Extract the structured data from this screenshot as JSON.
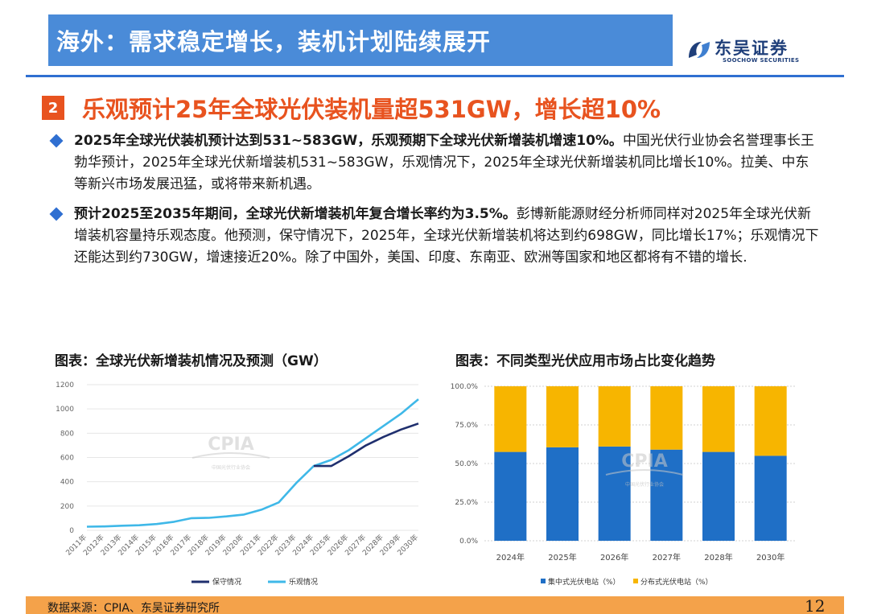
{
  "header": {
    "title": "海外：需求稳定增长，装机计划陆续展开"
  },
  "logo": {
    "name": "东吴证券",
    "subtitle": "SOOCHOW SECURITIES"
  },
  "section": {
    "number": "2",
    "title": "乐观预计25年全球光伏装机量超531GW，增长超10%"
  },
  "bullets": [
    {
      "bold": "2025年全球光伏装机预计达到531~583GW，乐观预期下全球光伏新增装机增速10%。",
      "text": "中国光伏行业协会名誉理事长王勃华预计，2025年全球光伏新增装机531~583GW，乐观情况下，2025年全球光伏新增装机同比增长10%。拉美、中东等新兴市场发展迅猛，或将带来新机遇。"
    },
    {
      "bold": "预计2025至2035年期间，全球光伏新增装机年复合增长率约为3.5%。",
      "text": "彭博新能源财经分析师同样对2025年全球光伏新增装机容量持乐观态度。他预测，保守情况下，2025年，全球光伏新增装机将达到约698GW，同比增长17%；乐观情况下还能达到约730GW，增速接近20%。除了中国外，美国、印度、东南亚、欧洲等国家和地区都将有不错的增长."
    }
  ],
  "charts": {
    "left_title": "图表：全球光伏新增装机情况及预测（GW）",
    "right_title": "图表：不同类型光伏应用市场占比变化趋势"
  },
  "watermark": {
    "text": "CPIA",
    "sub": "中国光伏行业协会"
  },
  "footer": {
    "source": "数据来源：CPIA、东吴证券研究所",
    "page": "12"
  },
  "colors": {
    "title_bar": "#4a8bd8",
    "accent": "#e8531f",
    "conservative": "#1f2f6e",
    "optimistic": "#3fb8e8",
    "centralized": "#1f6fc6",
    "distributed": "#f7b500"
  },
  "chart_data": [
    {
      "type": "line",
      "x": [
        "2011年",
        "2012年",
        "2013年",
        "2014年",
        "2015年",
        "2016年",
        "2017年",
        "2018年",
        "2019年",
        "2020年",
        "2021年",
        "2022年",
        "2023年",
        "2024年",
        "2025年",
        "2026年",
        "2027年",
        "2028年",
        "2029年",
        "2030年"
      ],
      "ylim": [
        0,
        1200
      ],
      "yticks": [
        0,
        200,
        400,
        600,
        800,
        1000,
        1200
      ],
      "grid": true,
      "legend": "bottom",
      "series": [
        {
          "name": "保守情况",
          "color": "#1f2f6e",
          "values": [
            null,
            null,
            null,
            null,
            null,
            null,
            null,
            null,
            null,
            null,
            null,
            null,
            null,
            530,
            530,
            610,
            700,
            770,
            830,
            880
          ]
        },
        {
          "name": "乐观情况",
          "color": "#3fb8e8",
          "values": [
            30,
            32,
            38,
            42,
            52,
            70,
            100,
            103,
            115,
            130,
            170,
            230,
            390,
            530,
            580,
            660,
            760,
            860,
            960,
            1080
          ]
        }
      ]
    },
    {
      "type": "bar",
      "stacked": true,
      "categories": [
        "2024年",
        "2025年",
        "2026年",
        "2027年",
        "2028年",
        "2030年"
      ],
      "ylim": [
        0,
        100
      ],
      "yticks": [
        "0.0%",
        "25.0%",
        "50.0%",
        "75.0%",
        "100.0%"
      ],
      "grid": true,
      "legend": "bottom",
      "series": [
        {
          "name": "集中式光伏电站（%）",
          "color": "#1f6fc6",
          "values": [
            57.5,
            60.5,
            61,
            59,
            57.5,
            55
          ]
        },
        {
          "name": "分布式光伏电站（%）",
          "color": "#f7b500",
          "values": [
            42.5,
            39.5,
            39,
            41,
            42.5,
            45
          ]
        }
      ]
    }
  ]
}
